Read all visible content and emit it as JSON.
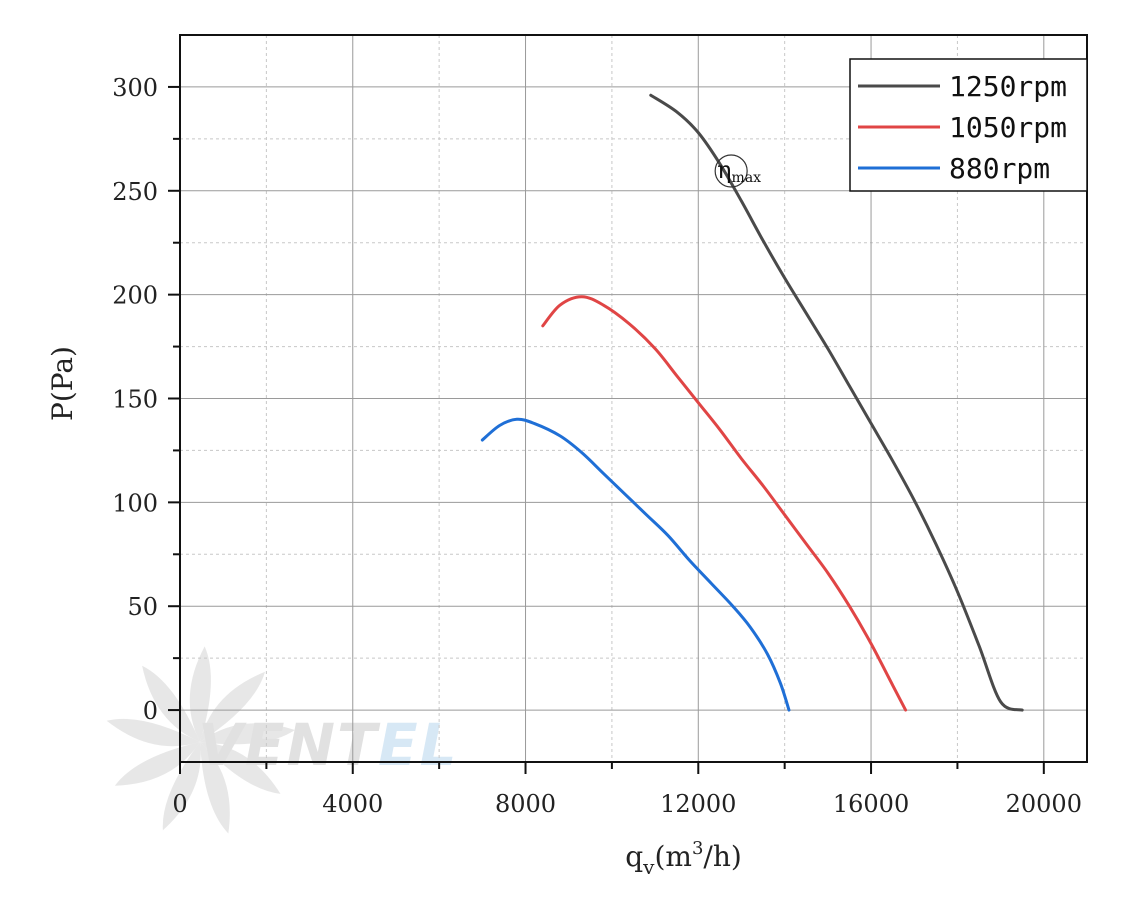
{
  "chart_data": {
    "type": "line",
    "title": "",
    "xlabel": {
      "base": "q",
      "sub": "v",
      "open": "(m",
      "sup": "3",
      "close": "/h)"
    },
    "ylabel": "P(Pa)",
    "xlim": [
      0,
      21000
    ],
    "ylim": [
      -25,
      325
    ],
    "xticks": [
      0,
      4000,
      8000,
      12000,
      16000,
      20000
    ],
    "xtick_labels": [
      "0",
      "4000",
      "8000",
      "12000",
      "16000",
      "20000"
    ],
    "yticks": [
      0,
      50,
      100,
      150,
      200,
      250,
      300
    ],
    "ytick_labels": [
      "0",
      "50",
      "100",
      "150",
      "200",
      "250",
      "300"
    ],
    "grid": true,
    "legend_position": "top-right",
    "series": [
      {
        "name": "1250rpm",
        "color": "#4a4a4a",
        "points": [
          [
            10900,
            296
          ],
          [
            11500,
            288
          ],
          [
            12000,
            278
          ],
          [
            12500,
            263
          ],
          [
            13000,
            245
          ],
          [
            13500,
            226
          ],
          [
            14000,
            208
          ],
          [
            14500,
            191
          ],
          [
            15000,
            174
          ],
          [
            15500,
            156
          ],
          [
            16000,
            138
          ],
          [
            16500,
            120
          ],
          [
            17000,
            101
          ],
          [
            17500,
            80
          ],
          [
            18000,
            57
          ],
          [
            18500,
            31
          ],
          [
            19000,
            4
          ],
          [
            19500,
            0
          ]
        ]
      },
      {
        "name": "1050rpm",
        "color": "#e04545",
        "points": [
          [
            8400,
            185
          ],
          [
            8800,
            195
          ],
          [
            9300,
            199
          ],
          [
            9800,
            195
          ],
          [
            10400,
            186
          ],
          [
            11000,
            174
          ],
          [
            11500,
            161
          ],
          [
            12000,
            148
          ],
          [
            12500,
            135
          ],
          [
            13000,
            121
          ],
          [
            13500,
            108
          ],
          [
            14000,
            94
          ],
          [
            14500,
            80
          ],
          [
            15000,
            66
          ],
          [
            15500,
            50
          ],
          [
            16000,
            32
          ],
          [
            16500,
            12
          ],
          [
            16800,
            0
          ]
        ]
      },
      {
        "name": "880rpm",
        "color": "#1f6fd6",
        "points": [
          [
            7000,
            130
          ],
          [
            7400,
            137
          ],
          [
            7800,
            140
          ],
          [
            8200,
            138
          ],
          [
            8800,
            132
          ],
          [
            9300,
            124
          ],
          [
            9800,
            114
          ],
          [
            10300,
            104
          ],
          [
            10800,
            94
          ],
          [
            11300,
            84
          ],
          [
            11800,
            72
          ],
          [
            12300,
            61
          ],
          [
            12800,
            50
          ],
          [
            13200,
            40
          ],
          [
            13600,
            27
          ],
          [
            13900,
            13
          ],
          [
            14100,
            0
          ]
        ]
      }
    ],
    "annotations": [
      {
        "label_main": "η",
        "label_sub": "max",
        "x": 12900,
        "y": 260
      }
    ]
  },
  "watermark": {
    "text": "VENTEL",
    "colors": [
      "#c9c9c9",
      "#b8d6ee"
    ]
  }
}
